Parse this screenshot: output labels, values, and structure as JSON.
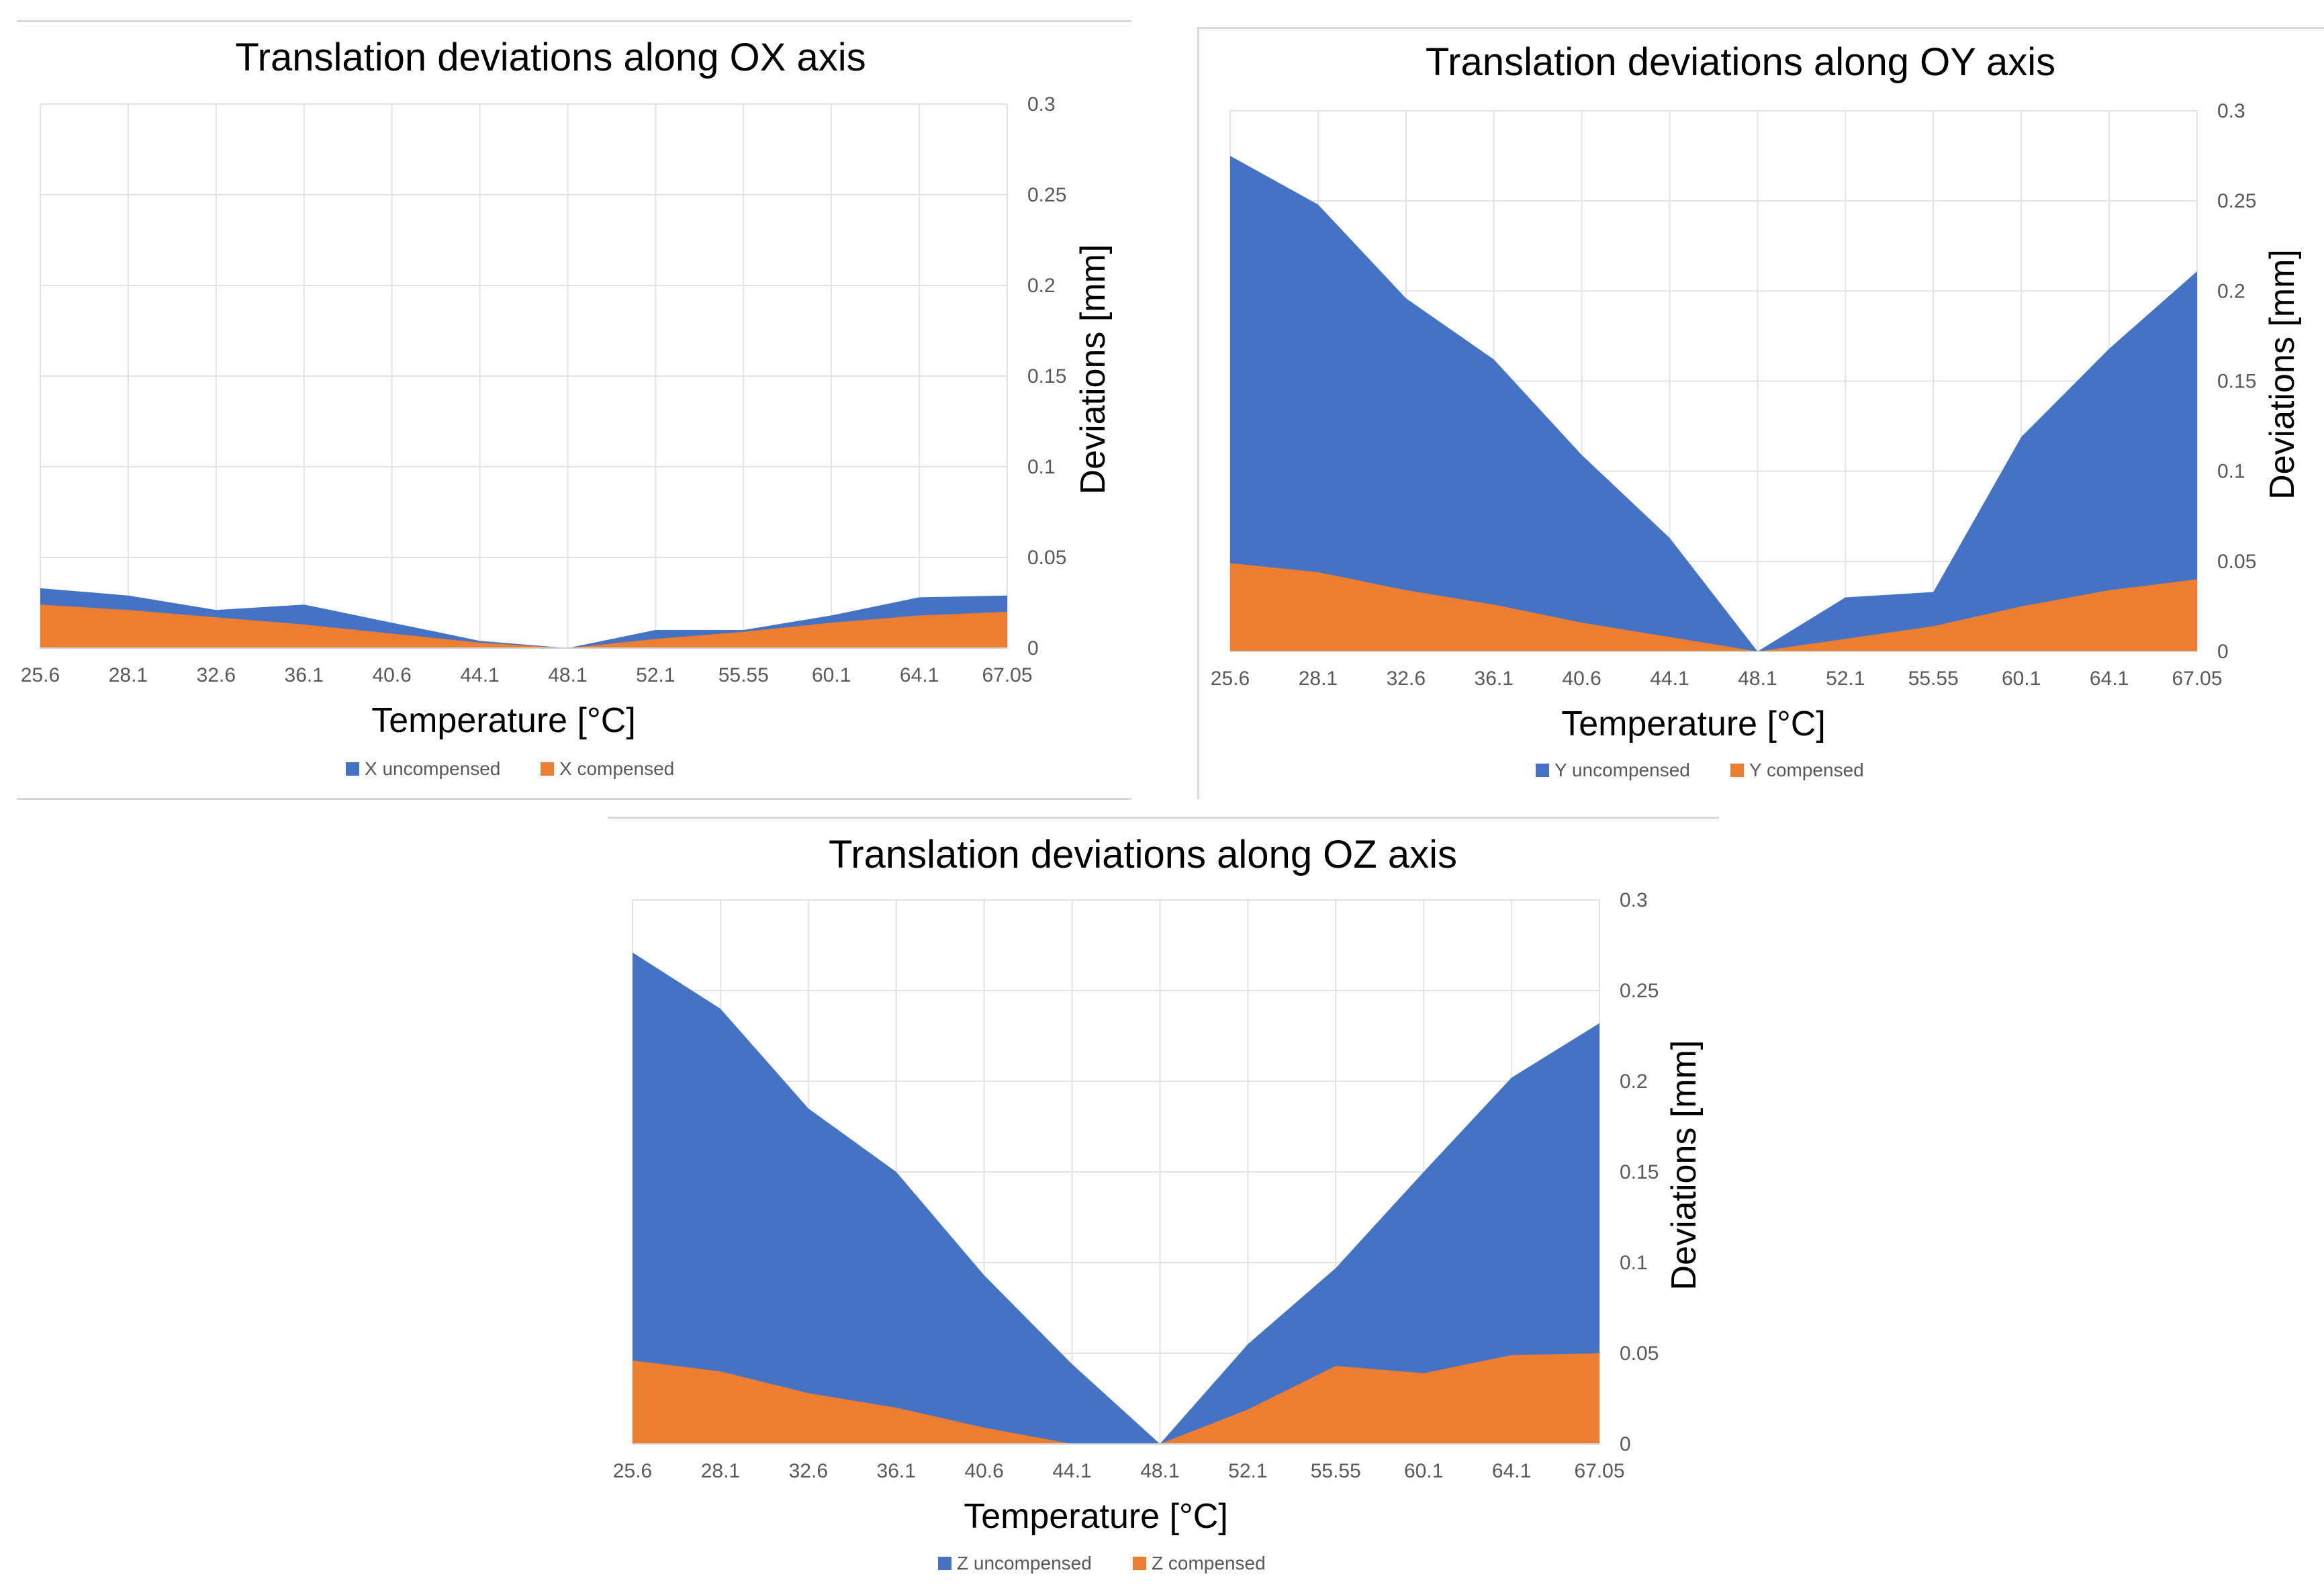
{
  "chart_data": [
    {
      "type": "area",
      "title": "Translation deviations along OX axis",
      "xlabel": "Temperature [°C]",
      "ylabel": "Deviations [mm]",
      "ylim": [
        0,
        0.3
      ],
      "yticks": [
        "0",
        "0.05",
        "0.1",
        "0.15",
        "0.2",
        "0.25",
        "0.3"
      ],
      "categories": [
        "25.6",
        "28.1",
        "32.6",
        "36.1",
        "40.6",
        "44.1",
        "48.1",
        "52.1",
        "55.55",
        "60.1",
        "64.1",
        "67.05"
      ],
      "legend_position": "bottom",
      "series": [
        {
          "name": "X uncompensed",
          "color": "#4472C4",
          "values": [
            0.033,
            0.029,
            0.021,
            0.024,
            0.014,
            0.004,
            0.0,
            0.01,
            0.01,
            0.018,
            0.028,
            0.029
          ]
        },
        {
          "name": "X compensed",
          "color": "#ED7D31",
          "values": [
            0.024,
            0.021,
            0.017,
            0.013,
            0.008,
            0.003,
            0.0,
            0.005,
            0.009,
            0.014,
            0.018,
            0.02
          ]
        }
      ]
    },
    {
      "type": "area",
      "title": "Translation deviations along OY axis",
      "xlabel": "Temperature [°C]",
      "ylabel": "Deviations [mm]",
      "ylim": [
        0,
        0.3
      ],
      "yticks": [
        "0",
        "0.05",
        "0.1",
        "0.15",
        "0.2",
        "0.25",
        "0.3"
      ],
      "categories": [
        "25.6",
        "28.1",
        "32.6",
        "36.1",
        "40.6",
        "44.1",
        "48.1",
        "52.1",
        "55.55",
        "60.1",
        "64.1",
        "67.05"
      ],
      "legend_position": "bottom",
      "series": [
        {
          "name": "Y uncompensed",
          "color": "#4472C4",
          "values": [
            0.275,
            0.248,
            0.196,
            0.162,
            0.109,
            0.063,
            0.0,
            0.03,
            0.033,
            0.119,
            0.168,
            0.211
          ]
        },
        {
          "name": "Y compensed",
          "color": "#ED7D31",
          "values": [
            0.049,
            0.044,
            0.034,
            0.026,
            0.016,
            0.008,
            0.0,
            0.007,
            0.014,
            0.025,
            0.034,
            0.04
          ]
        }
      ]
    },
    {
      "type": "area",
      "title": "Translation deviations along OZ axis",
      "xlabel": "Temperature [°C]",
      "ylabel": "Deviations [mm]",
      "ylim": [
        0,
        0.3
      ],
      "yticks": [
        "0",
        "0.05",
        "0.1",
        "0.15",
        "0.2",
        "0.25",
        "0.3"
      ],
      "categories": [
        "25.6",
        "28.1",
        "32.6",
        "36.1",
        "40.6",
        "44.1",
        "48.1",
        "52.1",
        "55.55",
        "60.1",
        "64.1",
        "67.05"
      ],
      "legend_position": "bottom",
      "series": [
        {
          "name": "Z uncompensed",
          "color": "#4472C4",
          "values": [
            0.271,
            0.24,
            0.185,
            0.15,
            0.093,
            0.044,
            0.0,
            0.055,
            0.097,
            0.15,
            0.202,
            0.232
          ]
        },
        {
          "name": "Z compensed",
          "color": "#ED7D31",
          "values": [
            0.046,
            0.04,
            0.028,
            0.02,
            0.009,
            0.0,
            0.0,
            0.019,
            0.043,
            0.039,
            0.049,
            0.05
          ]
        }
      ]
    }
  ]
}
